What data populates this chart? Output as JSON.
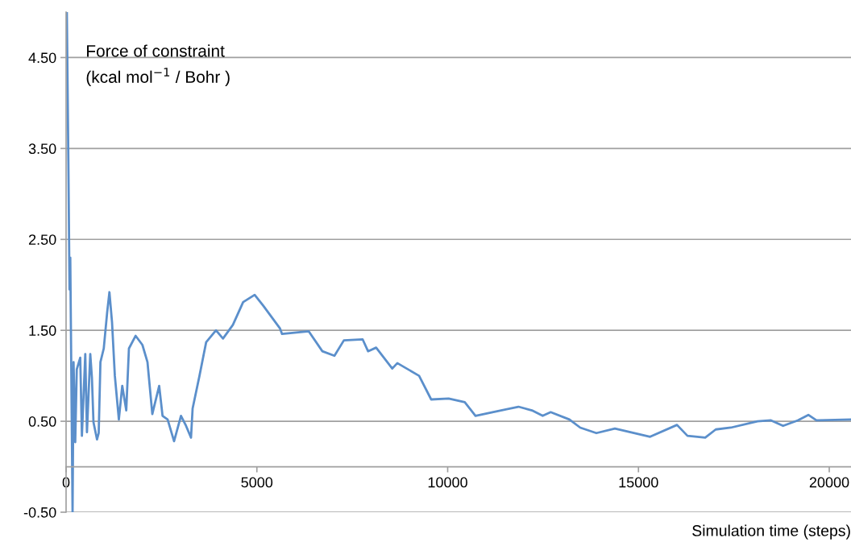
{
  "chart_data": {
    "type": "line",
    "ylabel": "Force of constraint\n(kcal mol$^{−1}$ / Bohr )",
    "xlabel": "Simulation time (steps)",
    "x": [
      20,
      60,
      90,
      110,
      170,
      196,
      240,
      280,
      371,
      415,
      503,
      547,
      634,
      677,
      718,
      811,
      855,
      900,
      987,
      1077,
      1136,
      1204,
      1278,
      1383,
      1472,
      1577,
      1647,
      1823,
      2000,
      2133,
      2260,
      2440,
      2528,
      2661,
      2830,
      3011,
      3143,
      3274,
      3316,
      3496,
      3671,
      3929,
      4112,
      4372,
      4640,
      4942,
      5168,
      5607,
      5660,
      6357,
      6716,
      7033,
      7280,
      7773,
      7914,
      8125,
      8548,
      8681,
      9251,
      9568,
      10025,
      10448,
      10729,
      11855,
      12208,
      12490,
      12700,
      13190,
      13475,
      13897,
      14383,
      15306,
      16010,
      16284,
      16750,
      17025,
      17420,
      18120,
      18473,
      18790,
      19177,
      19452,
      19663,
      20550
    ],
    "series": [
      {
        "color": "#5b8fcb",
        "values": [
          5.0,
          3.36,
          1.95,
          2.3,
          -0.5,
          1.15,
          0.27,
          1.07,
          1.2,
          0.34,
          1.24,
          0.38,
          1.24,
          0.98,
          0.49,
          0.3,
          0.37,
          1.15,
          1.3,
          1.7,
          1.92,
          1.59,
          1.0,
          0.52,
          0.89,
          0.62,
          1.3,
          1.44,
          1.34,
          1.15,
          0.58,
          0.89,
          0.56,
          0.52,
          0.28,
          0.56,
          0.45,
          0.32,
          0.64,
          1.0,
          1.37,
          1.5,
          1.41,
          1.56,
          1.81,
          1.89,
          1.77,
          1.52,
          1.46,
          1.49,
          1.27,
          1.22,
          1.39,
          1.4,
          1.27,
          1.31,
          1.08,
          1.14,
          1.0,
          0.74,
          0.75,
          0.71,
          0.56,
          0.66,
          0.62,
          0.56,
          0.6,
          0.52,
          0.43,
          0.37,
          0.42,
          0.33,
          0.46,
          0.34,
          0.32,
          0.41,
          0.43,
          0.5,
          0.51,
          0.45,
          0.51,
          0.57,
          0.51,
          0.52
        ]
      }
    ],
    "xlim": [
      0,
      20570
    ],
    "ylim": [
      -0.5,
      5.0
    ],
    "xticks": [
      0,
      5000,
      10000,
      15000,
      20000
    ],
    "yticks": [
      {
        "value": -0.5,
        "label": "-0.50"
      },
      {
        "value": 0.5,
        "label": "0.50"
      },
      {
        "value": 1.5,
        "label": "1.50"
      },
      {
        "value": 2.5,
        "label": "2.50"
      },
      {
        "value": 3.5,
        "label": "3.50"
      },
      {
        "value": 4.5,
        "label": "4.50"
      }
    ],
    "grid": "y",
    "legend": false,
    "marker": "none",
    "line_style": "solid"
  }
}
